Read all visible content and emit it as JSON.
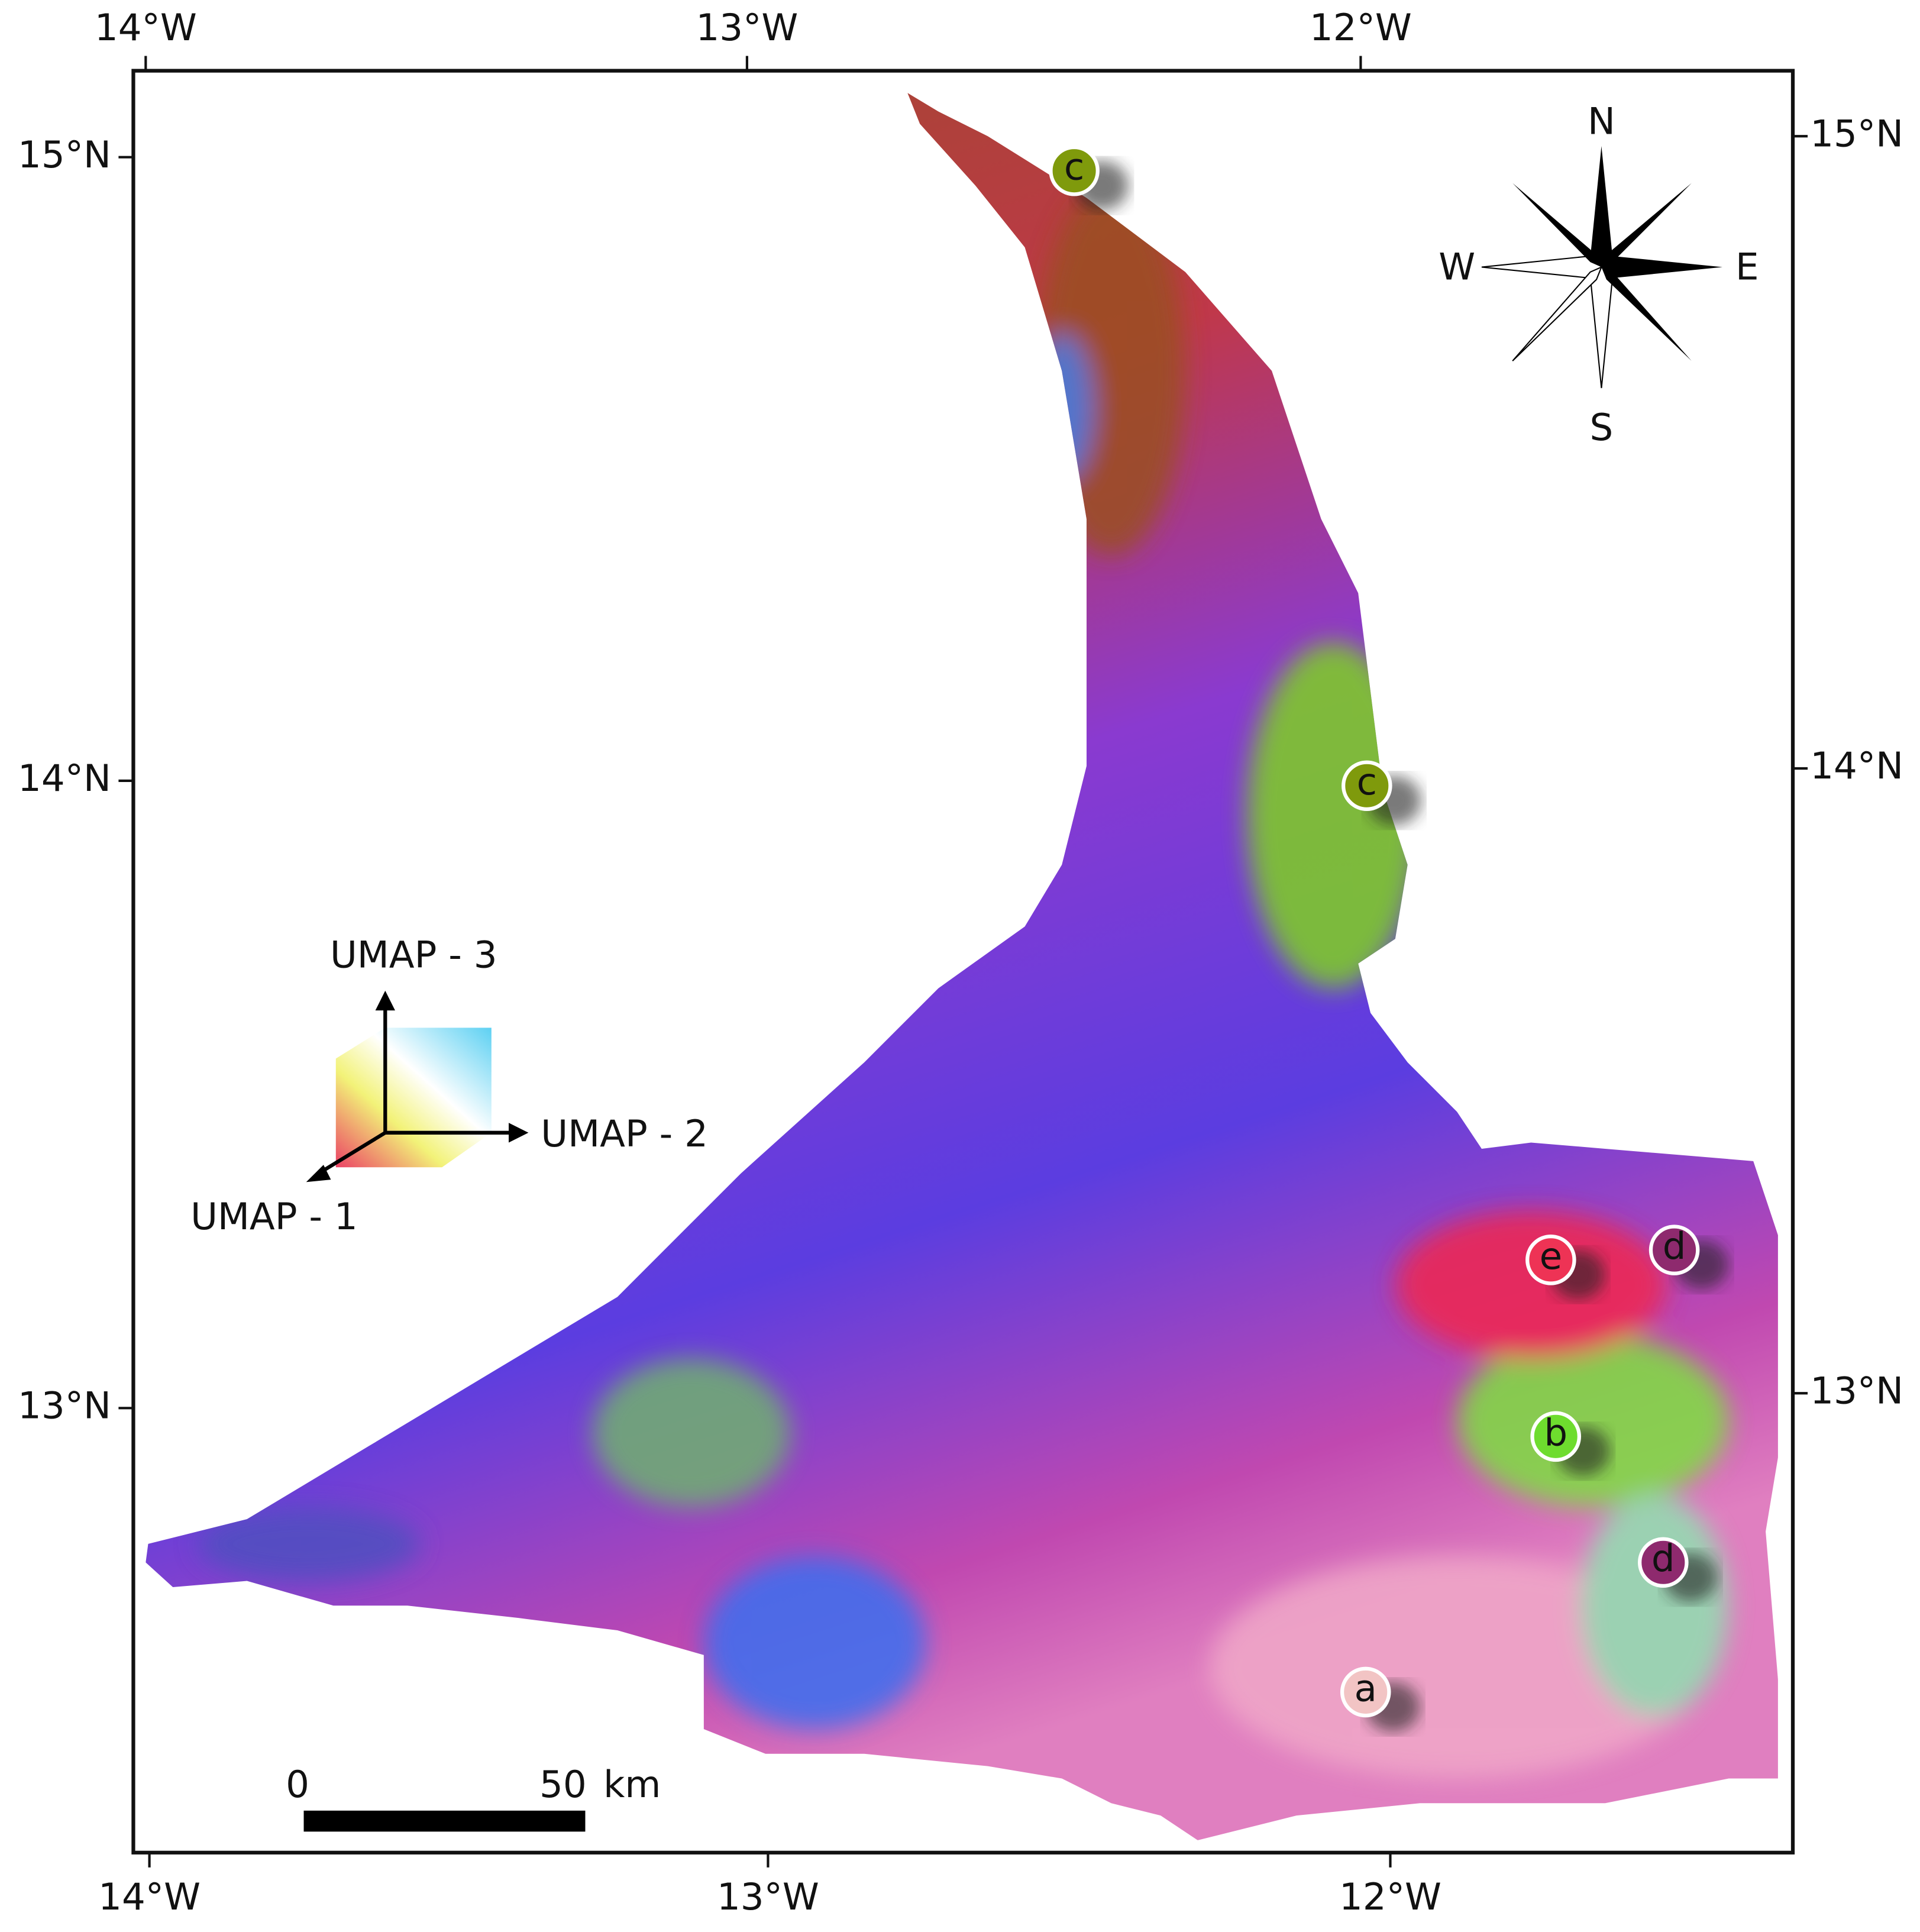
{
  "axes": {
    "top": [
      "14°W",
      "13°W",
      "12°W"
    ],
    "bottom": [
      "14°W",
      "13°W",
      "12°W"
    ],
    "left": [
      "15°N",
      "14°N",
      "13°N"
    ],
    "right": [
      "15°N",
      "14°N",
      "13°N"
    ]
  },
  "compass": {
    "north": "N",
    "south": "S",
    "west": "W",
    "east": "E"
  },
  "legend": {
    "axis_3": "UMAP - 3",
    "axis_2": "UMAP - 2",
    "axis_1": "UMAP - 1"
  },
  "scale_bar": {
    "start": "0",
    "end": "50",
    "unit": "km"
  },
  "sites": [
    {
      "label": "c",
      "color": "#7f9a0c"
    },
    {
      "label": "c",
      "color": "#7f9a0c"
    },
    {
      "label": "e",
      "color": "#ee3355"
    },
    {
      "label": "d",
      "color": "#8e2a6e"
    },
    {
      "label": "b",
      "color": "#6edc2e"
    },
    {
      "label": "d",
      "color": "#8e2a6e"
    },
    {
      "label": "a",
      "color": "#f2c4c4"
    }
  ]
}
